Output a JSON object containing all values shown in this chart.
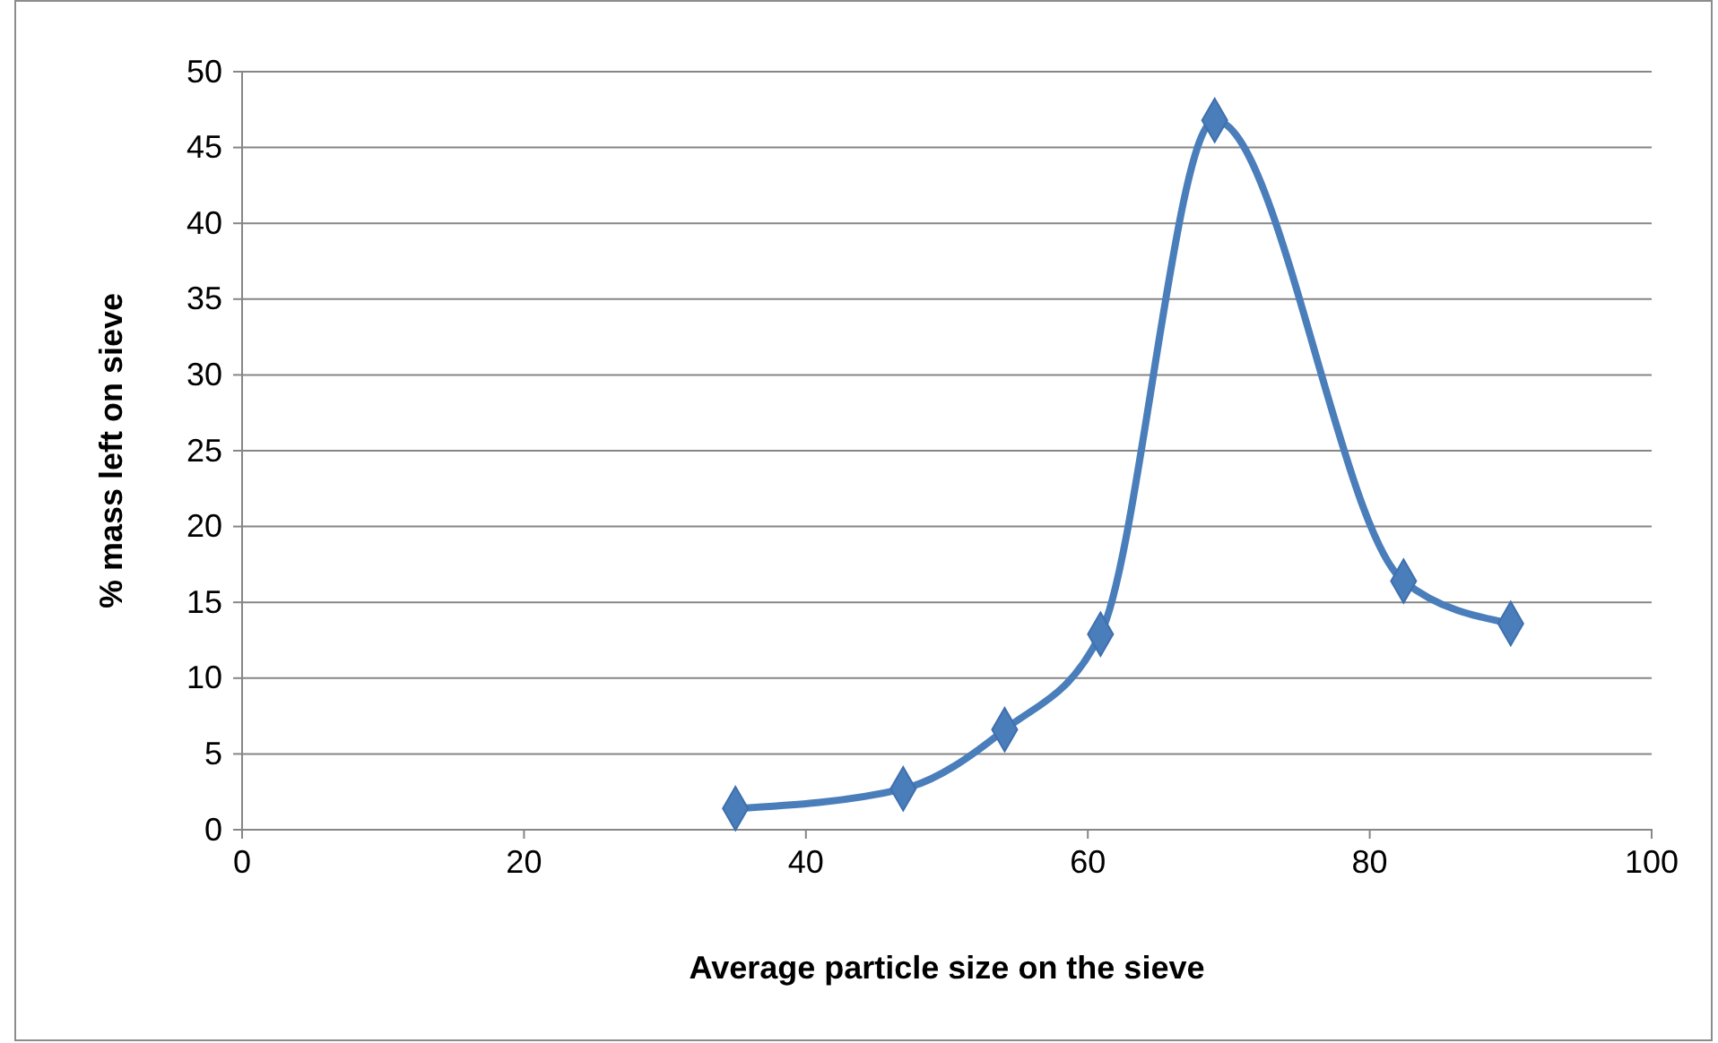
{
  "chart_data": {
    "type": "line",
    "xlabel": "Average particle size on the sieve",
    "ylabel": "% mass left on sieve",
    "x": [
      35,
      46.9,
      54.1,
      60.9,
      69,
      82.4,
      90
    ],
    "series": [
      {
        "color": "#4a7ebb",
        "values": [
          1.4,
          2.7,
          6.6,
          12.9,
          46.8,
          16.4,
          13.6
        ]
      }
    ],
    "xlim": [
      0,
      100
    ],
    "xticks": [
      0,
      20,
      40,
      60,
      80,
      100
    ],
    "ylim": [
      0,
      50
    ],
    "yticks": [
      0,
      5,
      10,
      15,
      20,
      25,
      30,
      35,
      40,
      45,
      50
    ],
    "grid": "y",
    "marker": "diamond",
    "line_style": "solid"
  }
}
